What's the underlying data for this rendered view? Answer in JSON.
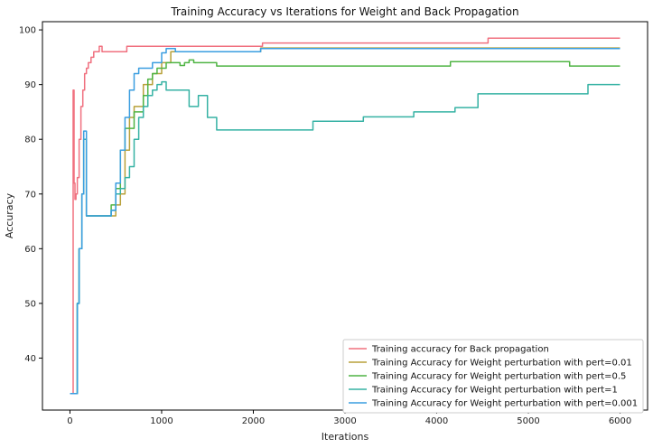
{
  "chart_data": {
    "type": "line",
    "title": "Training Accuracy vs Iterations for Weight and Back Propagation",
    "xlabel": "Iterations",
    "ylabel": "Accuracy",
    "xlim": [
      -300,
      6300
    ],
    "ylim": [
      30.5,
      101.5
    ],
    "xticks": [
      0,
      1000,
      2000,
      3000,
      4000,
      5000,
      6000
    ],
    "yticks": [
      40,
      50,
      60,
      70,
      80,
      90,
      100
    ],
    "legend_position": "lower-right",
    "grid": false,
    "series": [
      {
        "name": "Training accuracy for Back propagation",
        "color": "#f0707f",
        "x": [
          0,
          20,
          35,
          45,
          55,
          65,
          80,
          100,
          120,
          140,
          160,
          180,
          200,
          230,
          260,
          300,
          320,
          330,
          350,
          400,
          500,
          550,
          600,
          620,
          650,
          1000,
          2000,
          2050,
          2060,
          2100,
          3000,
          4000,
          4500,
          4560,
          4600,
          5000,
          6000
        ],
        "y": [
          33.5,
          33.5,
          89,
          72,
          69,
          70,
          73,
          80,
          86,
          89,
          92,
          93,
          94,
          95,
          96,
          96,
          97,
          97,
          96,
          96,
          96,
          96,
          96,
          97,
          97,
          97,
          97,
          97,
          97,
          97.6,
          97.6,
          97.6,
          97.6,
          98.5,
          98.5,
          98.5,
          98.5
        ]
      },
      {
        "name": "Training Accuracy for Weight perturbation with pert=0.01",
        "color": "#b8a13a",
        "x": [
          0,
          40,
          60,
          80,
          100,
          130,
          150,
          180,
          300,
          400,
          450,
          500,
          550,
          600,
          650,
          700,
          800,
          900,
          1000,
          1100,
          1200,
          1500,
          2000,
          2080,
          3000,
          4000,
          5000,
          6000
        ],
        "y": [
          33.5,
          33.5,
          33.5,
          50,
          60,
          70,
          80,
          66,
          66,
          66,
          66,
          68,
          70,
          78,
          84,
          86,
          90,
          92,
          94,
          96,
          96,
          96,
          96,
          96.7,
          96.7,
          96.7,
          96.7,
          96.7
        ]
      },
      {
        "name": "Training Accuracy for Weight perturbation with pert=0.5",
        "color": "#4fb443",
        "x": [
          0,
          40,
          60,
          80,
          100,
          130,
          150,
          180,
          300,
          400,
          450,
          500,
          550,
          600,
          650,
          700,
          800,
          850,
          900,
          950,
          1000,
          1050,
          1100,
          1150,
          1200,
          1250,
          1300,
          1350,
          1400,
          1500,
          1600,
          2000,
          3000,
          4000,
          4150,
          4200,
          5000,
          5400,
          5450,
          6000
        ],
        "y": [
          33.5,
          33.5,
          33.5,
          50,
          60,
          70,
          80,
          66,
          66,
          66,
          68,
          71,
          78,
          82,
          82,
          85,
          88,
          91,
          92,
          93,
          93,
          94,
          94,
          94,
          93.5,
          94,
          94.5,
          94,
          94,
          94,
          93.4,
          93.4,
          93.4,
          93.4,
          94.2,
          94.2,
          94.2,
          94.2,
          93.4,
          93.4
        ]
      },
      {
        "name": "Training Accuracy for Weight perturbation with pert=1",
        "color": "#36b2a4",
        "x": [
          0,
          40,
          60,
          80,
          100,
          130,
          150,
          180,
          300,
          400,
          450,
          500,
          550,
          600,
          650,
          700,
          750,
          800,
          850,
          900,
          950,
          1000,
          1050,
          1100,
          1200,
          1300,
          1400,
          1500,
          1600,
          2000,
          2600,
          2650,
          3000,
          3150,
          3200,
          3700,
          3750,
          4000,
          4200,
          4400,
          4450,
          5000,
          5600,
          5650,
          6000
        ],
        "y": [
          33.5,
          33.5,
          33.5,
          50,
          60,
          70,
          80,
          66,
          66,
          66,
          67,
          70,
          71,
          73,
          75,
          80,
          84,
          86,
          88,
          89,
          90,
          90.5,
          89,
          89,
          89,
          86,
          88,
          84,
          81.7,
          81.7,
          81.7,
          83.3,
          83.3,
          83.3,
          84.1,
          84.1,
          85,
          85,
          85.8,
          85.8,
          88.3,
          88.3,
          88.3,
          90,
          90
        ]
      },
      {
        "name": "Training Accuracy for Weight perturbation with pert=0.001",
        "color": "#3a9ee0",
        "x": [
          0,
          40,
          60,
          80,
          100,
          130,
          150,
          180,
          300,
          400,
          450,
          500,
          550,
          600,
          650,
          700,
          750,
          800,
          900,
          1000,
          1050,
          1100,
          1150,
          1200,
          1500,
          2000,
          2080,
          3000,
          4000,
          5000,
          6000
        ],
        "y": [
          33.5,
          33.5,
          33.5,
          50,
          60,
          70,
          81.5,
          66,
          66,
          66,
          67,
          72,
          78,
          84,
          89,
          92,
          93,
          93,
          94,
          95.8,
          96.6,
          96.6,
          96,
          96,
          96,
          96,
          96.6,
          96.6,
          96.6,
          96.6,
          96.6
        ]
      }
    ]
  }
}
